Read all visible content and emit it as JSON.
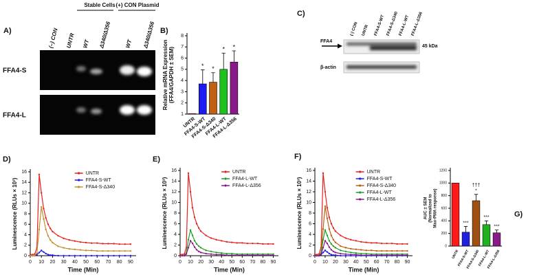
{
  "gel_a": {
    "label": "A)",
    "group_headers": [
      "Stable Cells",
      "(+) CON Plasmid"
    ],
    "lanes": [
      "(–) CON",
      "UNTR",
      "WT",
      "Δ340/Δ356",
      "WT",
      "Δ340/Δ356"
    ],
    "rows": [
      "FFA4-S",
      "FFA4-L"
    ]
  },
  "blot_c": {
    "label": "C)",
    "lanes": [
      "(-) CON",
      "UNTR",
      "FFA4-S-WT",
      "FFA4-S-Δ340",
      "FFA4-L-WT",
      "FFA4-L-Δ356"
    ],
    "rows": [
      "FFA4",
      "β-actin"
    ],
    "marker": "45 kDa"
  },
  "chart_data": [
    {
      "type": "bar",
      "panel_label": "B)",
      "y_label": [
        "Relative mRNA Expression",
        "(FFA4/GAPDH ± SEM)"
      ],
      "categories": [
        "UNTR",
        "FFA4-S-WT",
        "FFA4-S-Δ340",
        "FFA4-L-WT",
        "FFA4-L-Δ356"
      ],
      "values": [
        1.05,
        3.7,
        3.85,
        5.0,
        5.65
      ],
      "errors": [
        0,
        1.25,
        0.85,
        1.45,
        1.0
      ],
      "colors": [
        "#e8201c",
        "#1c1cf0",
        "#c06010",
        "#20c020",
        "#8a1a8a"
      ],
      "annotations": [
        null,
        [
          "*"
        ],
        [
          "*"
        ],
        [
          "*"
        ],
        [
          "*"
        ]
      ],
      "ylim": [
        1,
        8
      ],
      "yticks": [
        1,
        2,
        3,
        4,
        5,
        6,
        7,
        8
      ]
    },
    {
      "type": "line",
      "panel_label": "D)",
      "y_label": [
        "Luminescence (RLUs × 10³)"
      ],
      "x_label": "Time (Min)",
      "x": [
        0,
        2,
        4,
        6,
        8,
        10,
        12,
        14,
        16,
        18,
        20,
        25,
        30,
        35,
        40,
        45,
        50,
        55,
        60,
        65,
        70,
        75,
        80,
        85,
        90
      ],
      "series": [
        {
          "name": "UNTR",
          "color": "#e8201c",
          "values": [
            0.2,
            0.2,
            0.3,
            1.5,
            15.5,
            12,
            9,
            7.2,
            6,
            5.2,
            4.6,
            3.8,
            3.3,
            3.0,
            2.8,
            2.6,
            2.5,
            2.4,
            2.4,
            2.3,
            2.3,
            2.3,
            2.2,
            2.2,
            2.2
          ]
        },
        {
          "name": "FFA4-S-WT",
          "color": "#1c1cf0",
          "values": [
            0,
            0,
            0,
            0.2,
            0.6,
            1.0,
            0.7,
            0.4,
            0.2,
            0.1,
            0.1,
            0,
            0,
            0,
            0,
            0,
            0,
            0,
            0,
            0,
            0,
            0,
            0,
            0,
            0
          ]
        },
        {
          "name": "FFA4-S-Δ340",
          "color": "#c0902a",
          "values": [
            0,
            0,
            0,
            0.5,
            5,
            9.3,
            7,
            5,
            3.8,
            3,
            2.5,
            1.8,
            1.5,
            1.3,
            1.2,
            1.1,
            1.0,
            1.0,
            0.9,
            0.9,
            0.9,
            0.9,
            0.9,
            0.9,
            0.9
          ]
        }
      ],
      "xlim": [
        0,
        95
      ],
      "xticks": [
        0,
        10,
        20,
        30,
        40,
        50,
        60,
        70,
        80,
        90
      ],
      "ylim": [
        0,
        16
      ],
      "yticks": [
        0,
        2,
        4,
        6,
        8,
        10,
        12,
        14,
        16
      ],
      "legend": "upper right"
    },
    {
      "type": "line",
      "panel_label": "E)",
      "y_label": [
        "Luminescence (RLUs × 10³)"
      ],
      "x_label": "Time (Min)",
      "x": [
        0,
        2,
        4,
        6,
        8,
        10,
        12,
        14,
        16,
        18,
        20,
        25,
        30,
        35,
        40,
        45,
        50,
        55,
        60,
        65,
        70,
        75,
        80,
        85,
        90
      ],
      "series": [
        {
          "name": "UNTR",
          "color": "#e8201c",
          "values": [
            0.2,
            0.2,
            0.3,
            1.5,
            15.5,
            12,
            9,
            7.2,
            6,
            5.2,
            4.6,
            3.8,
            3.3,
            3.0,
            2.8,
            2.6,
            2.5,
            2.4,
            2.4,
            2.3,
            2.3,
            2.3,
            2.2,
            2.2,
            2.2
          ]
        },
        {
          "name": "FFA4-L-WT",
          "color": "#20a020",
          "values": [
            0,
            0,
            0,
            0.5,
            3,
            4.8,
            3.8,
            2.8,
            2.2,
            1.8,
            1.5,
            1.0,
            0.8,
            0.6,
            0.5,
            0.4,
            0.4,
            0.3,
            0.3,
            0.3,
            0.3,
            0.3,
            0.3,
            0.3,
            0.3
          ]
        },
        {
          "name": "FFA4-L-Δ356",
          "color": "#8a1a8a",
          "values": [
            0,
            0,
            0,
            0.3,
            1.5,
            2.8,
            2.3,
            1.6,
            1.1,
            0.8,
            0.6,
            0.4,
            0.3,
            0.2,
            0.2,
            0.1,
            0.1,
            0.1,
            0.1,
            0.1,
            0.1,
            0.1,
            0.1,
            0.1,
            0.1
          ]
        }
      ],
      "xlim": [
        0,
        95
      ],
      "xticks": [
        0,
        10,
        20,
        30,
        40,
        50,
        60,
        70,
        80,
        90
      ],
      "ylim": [
        0,
        16
      ],
      "yticks": [
        0,
        2,
        4,
        6,
        8,
        10,
        12,
        14,
        16
      ],
      "legend": "upper right"
    },
    {
      "type": "line",
      "panel_label": "F)",
      "y_label": [
        "Luminescence (RLUs × 10³)"
      ],
      "x_label": "Time (Min)",
      "x": [
        0,
        2,
        4,
        6,
        8,
        10,
        12,
        14,
        16,
        18,
        20,
        25,
        30,
        35,
        40,
        45,
        50,
        55,
        60,
        65,
        70,
        75,
        80,
        85,
        90
      ],
      "series": [
        {
          "name": "UNTR",
          "color": "#e8201c",
          "values": [
            0.2,
            0.2,
            0.3,
            1.5,
            15.5,
            12,
            9,
            7.2,
            6,
            5.2,
            4.6,
            3.8,
            3.3,
            3.0,
            2.8,
            2.6,
            2.5,
            2.4,
            2.4,
            2.3,
            2.3,
            2.3,
            2.2,
            2.2,
            2.2
          ]
        },
        {
          "name": "FFA4-S-WT",
          "color": "#1c1cf0",
          "values": [
            0,
            0,
            0,
            0.2,
            0.6,
            1.0,
            0.7,
            0.4,
            0.2,
            0.1,
            0.1,
            0,
            0,
            0,
            0,
            0,
            0,
            0,
            0,
            0,
            0,
            0,
            0,
            0,
            0
          ]
        },
        {
          "name": "FFA4-S-Δ340",
          "color": "#c06010",
          "values": [
            0,
            0,
            0,
            0.5,
            5,
            9.3,
            7,
            5,
            3.8,
            3,
            2.5,
            1.8,
            1.5,
            1.3,
            1.2,
            1.1,
            1.0,
            1.0,
            0.9,
            0.9,
            0.9,
            0.9,
            0.9,
            0.9,
            0.9
          ]
        },
        {
          "name": "FFA4-L-WT",
          "color": "#20a020",
          "values": [
            0,
            0,
            0,
            0.5,
            3,
            4.8,
            3.8,
            2.8,
            2.2,
            1.8,
            1.5,
            1.0,
            0.8,
            0.6,
            0.5,
            0.4,
            0.4,
            0.3,
            0.3,
            0.3,
            0.3,
            0.3,
            0.3,
            0.3,
            0.3
          ]
        },
        {
          "name": "FFA4-L-Δ356",
          "color": "#8a1a8a",
          "values": [
            0,
            0,
            0,
            0.3,
            1.5,
            2.8,
            2.3,
            1.6,
            1.1,
            0.8,
            0.6,
            0.4,
            0.3,
            0.2,
            0.2,
            0.1,
            0.1,
            0.1,
            0.1,
            0.1,
            0.1,
            0.1,
            0.1,
            0.1,
            0.1
          ]
        }
      ],
      "xlim": [
        0,
        95
      ],
      "xticks": [
        0,
        10,
        20,
        30,
        40,
        50,
        60,
        70,
        80,
        90
      ],
      "ylim": [
        0,
        16
      ],
      "yticks": [
        0,
        2,
        4,
        6,
        8,
        10,
        12,
        14,
        16
      ],
      "legend": "upper right"
    },
    {
      "type": "bar",
      "panel_label": "G)",
      "y_label": [
        "AUC ± SEM",
        "(Normalized to",
        "Max-PMA response)"
      ],
      "categories": [
        "UNTR",
        "FFA4-S-WT",
        "FFA4-S-Δ340",
        "FFA4-L-WT",
        "FFA4-L-Δ356"
      ],
      "values": [
        1000,
        220,
        720,
        340,
        210
      ],
      "errors": [
        0,
        90,
        100,
        60,
        45
      ],
      "colors": [
        "#ff1a1a",
        "#2020e0",
        "#a05010",
        "#20b020",
        "#8a1a8a"
      ],
      "annotations": [
        null,
        [
          "***"
        ],
        [
          "*",
          "†††"
        ],
        [
          "***"
        ],
        [
          "***"
        ]
      ],
      "ylim": [
        0,
        1200
      ],
      "yticks": [
        0,
        200,
        400,
        600,
        800,
        1000,
        1200
      ]
    }
  ]
}
